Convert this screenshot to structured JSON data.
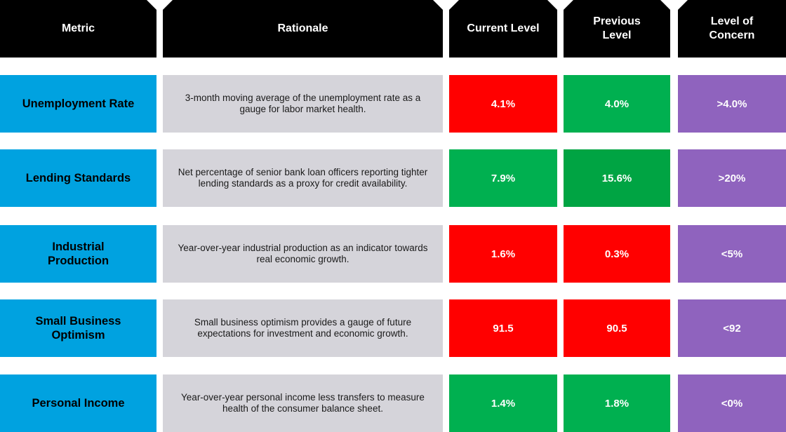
{
  "header": {
    "metric": "Metric",
    "rationale": "Rationale",
    "current_level": "Current Level",
    "previous_level": "Previous Level",
    "level_of_concern": "Level of Concern"
  },
  "rows": [
    {
      "metric": "Unemployment Rate",
      "rationale": "3-month moving average of the unemployment rate as a gauge for labor market health.",
      "current": "4.1%",
      "current_color": "#ff0000",
      "previous": "4.0%",
      "previous_color": "#00b050",
      "concern": ">4.0%",
      "concern_color": "#8f63be"
    },
    {
      "metric": "Lending Standards",
      "rationale": "Net percentage of senior bank loan officers reporting tighter lending standards as a proxy for credit availability.",
      "current": "7.9%",
      "current_color": "#00b050",
      "previous": "15.6%",
      "previous_color": "#00a443",
      "concern": ">20%",
      "concern_color": "#8f63be"
    },
    {
      "metric": "Industrial Production",
      "rationale": "Year-over-year industrial production as an indicator towards real economic growth.",
      "current": "1.6%",
      "current_color": "#ff0000",
      "previous": "0.3%",
      "previous_color": "#ff0000",
      "concern": "<5%",
      "concern_color": "#8f63be"
    },
    {
      "metric": "Small Business Optimism",
      "rationale": "Small business optimism provides a gauge of future expectations for investment and economic growth.",
      "current": "91.5",
      "current_color": "#ff0000",
      "previous": "90.5",
      "previous_color": "#ff0000",
      "concern": "<92",
      "concern_color": "#8f63be"
    },
    {
      "metric": "Personal Income",
      "rationale": "Year-over-year personal income less transfers to measure health of the consumer balance sheet.",
      "current": "1.4%",
      "current_color": "#00b050",
      "previous": "1.8%",
      "previous_color": "#00b050",
      "concern": "<0%",
      "concern_color": "#8f63be"
    }
  ]
}
